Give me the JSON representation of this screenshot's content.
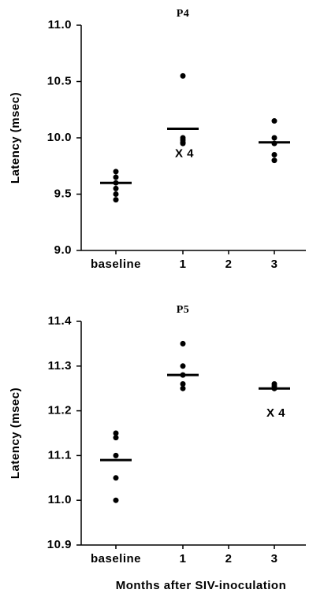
{
  "chart_data": [
    {
      "type": "scatter",
      "title": "P4",
      "ylabel": "Latency (msec)",
      "categories": [
        "baseline",
        "1",
        "2",
        "3"
      ],
      "points": [
        [
          9.7,
          9.65,
          9.6,
          9.55,
          9.5,
          9.45
        ],
        [
          10.55,
          10.0,
          9.98,
          9.96,
          9.95
        ],
        [],
        [
          10.15,
          10.0,
          9.95,
          9.85,
          9.8
        ]
      ],
      "means": [
        9.6,
        10.08,
        null,
        9.96
      ],
      "annotations": [
        null,
        "X 4",
        null,
        null
      ],
      "ylim": [
        9,
        11
      ],
      "yticks": [
        {
          "value": 9,
          "label": "9.0"
        },
        9.5,
        {
          "value": 10,
          "label": "10.0"
        },
        10.5,
        {
          "value": 11,
          "label": "11.0"
        }
      ],
      "color": "#000000"
    },
    {
      "type": "scatter",
      "title": "P5",
      "ylabel": "Latency (msec)",
      "xlabel": "Months after SIV-inoculation",
      "categories": [
        "baseline",
        "1",
        "2",
        "3"
      ],
      "points": [
        [
          11.15,
          11.14,
          11.1,
          11.05,
          11.0
        ],
        [
          11.35,
          11.3,
          11.28,
          11.26,
          11.25
        ],
        [],
        [
          11.26,
          11.255,
          11.25,
          11.25
        ]
      ],
      "means": [
        11.09,
        11.28,
        null,
        11.25
      ],
      "annotations": [
        null,
        null,
        null,
        "X 4"
      ],
      "ylim": [
        10.9,
        11.4
      ],
      "yticks": [
        10.9,
        {
          "value": 11,
          "label": "11.0"
        },
        11.1,
        11.2,
        11.3,
        11.4
      ],
      "color": "#000000"
    }
  ]
}
